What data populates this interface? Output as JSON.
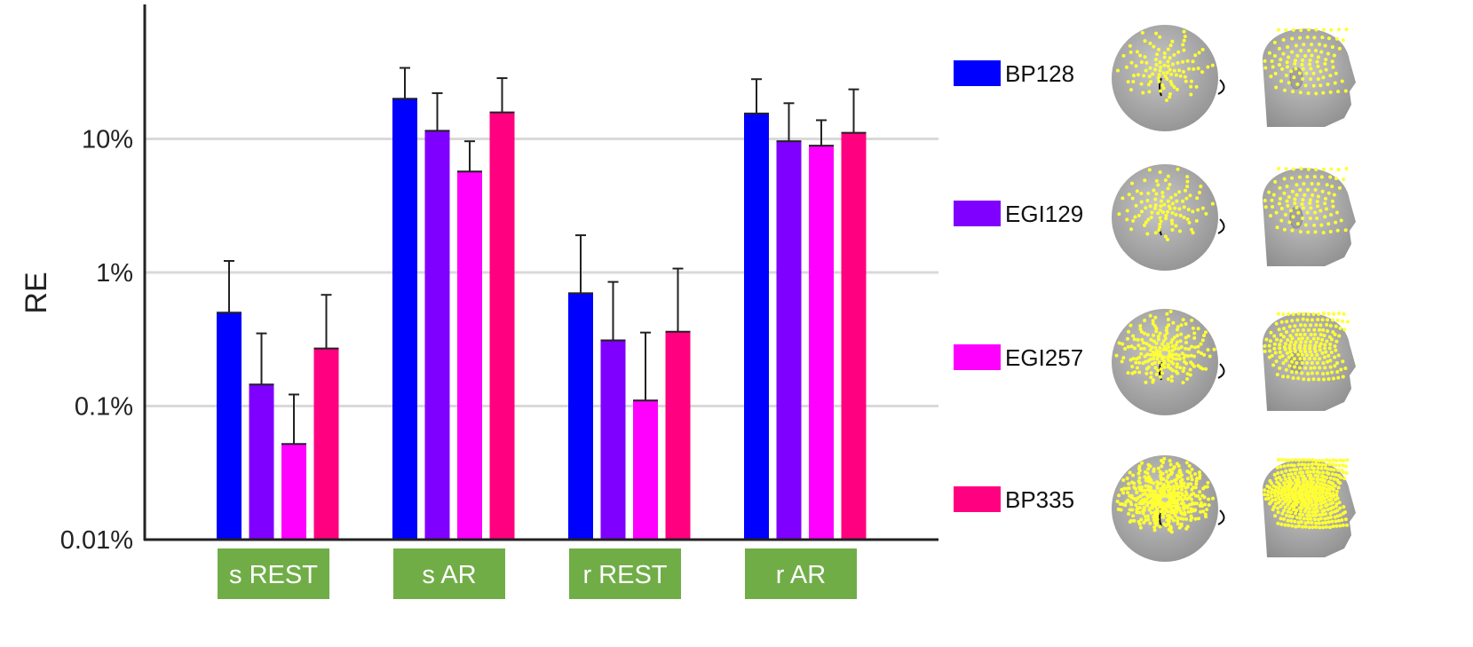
{
  "chart_data": {
    "type": "bar",
    "ylabel": "RE",
    "yscale": "log",
    "ylim": [
      0.01,
      100
    ],
    "y_ticks": [
      0.01,
      0.1,
      1,
      10
    ],
    "y_tick_labels": [
      "0.01%",
      "0.1%",
      "1%",
      "10%"
    ],
    "grid": true,
    "legend_position": "right",
    "categories": [
      "s REST",
      "s AR",
      "r REST",
      "r AR"
    ],
    "category_label_color": "#70ad47",
    "series": [
      {
        "name": "BP128",
        "color": "#0000ff",
        "values": [
          0.5,
          20,
          0.7,
          15.5
        ],
        "errors": [
          1.22,
          34,
          1.9,
          28
        ]
      },
      {
        "name": "EGI129",
        "color": "#8000ff",
        "values": [
          0.145,
          11.5,
          0.31,
          9.6
        ],
        "errors": [
          0.35,
          22,
          0.85,
          18.5
        ]
      },
      {
        "name": "EGI257",
        "color": "#ff00ff",
        "values": [
          0.052,
          5.7,
          0.11,
          8.9
        ],
        "errors": [
          0.122,
          9.6,
          0.355,
          13.8
        ]
      },
      {
        "name": "BP335",
        "color": "#ff0080",
        "values": [
          0.27,
          15.8,
          0.36,
          11.1
        ],
        "errors": [
          0.68,
          28.5,
          1.07,
          23.5
        ]
      }
    ]
  }
}
